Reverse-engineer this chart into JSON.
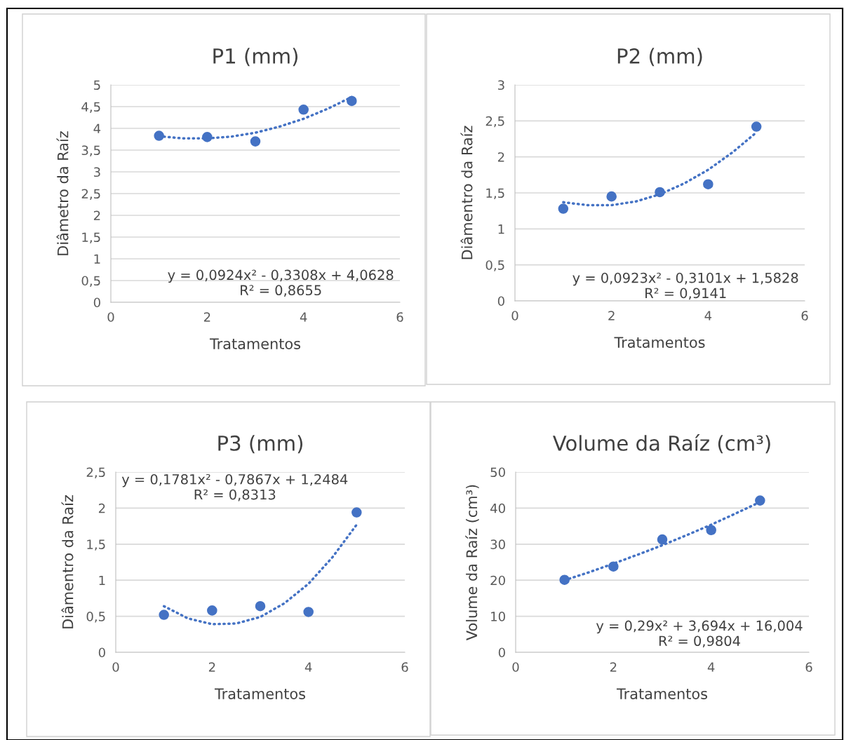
{
  "chart_data": [
    {
      "type": "scatter",
      "title": "P1 (mm)",
      "xlabel": "Tratamentos",
      "ylabel": "Diâmetro da Raíz",
      "x": [
        1,
        2,
        3,
        4,
        5
      ],
      "grid": "y",
      "legend": false,
      "marker": "circle",
      "series": [
        {
          "color": "#4472c4",
          "values": [
            3.83,
            3.8,
            3.7,
            4.43,
            4.63
          ]
        },
        {
          "type": "line",
          "line_style": "dotted",
          "marker": "none",
          "color": "#4472c4",
          "x": [
            1,
            1.5,
            2,
            2.5,
            3,
            3.5,
            4,
            4.5,
            5
          ],
          "values": [
            3.82,
            3.77,
            3.77,
            3.81,
            3.9,
            4.04,
            4.22,
            4.45,
            4.72
          ]
        }
      ],
      "xlim": [
        0,
        6
      ],
      "xticks": [
        0,
        2,
        4,
        6
      ],
      "ylim": [
        0,
        5
      ],
      "yticks": [
        0,
        {
          "value": 0.5,
          "label": "0,5"
        },
        1,
        {
          "value": 1.5,
          "label": "1,5"
        },
        2,
        {
          "value": 2.5,
          "label": "2,5"
        },
        3,
        {
          "value": 3.5,
          "label": "3,5"
        },
        4,
        {
          "value": 4.5,
          "label": "4,5"
        },
        5
      ],
      "annotations": [
        "y = 0,0924x² - 0,3308x + 4,0628\nR² = 0,8655"
      ]
    },
    {
      "type": "scatter",
      "title": "P2 (mm)",
      "xlabel": "Tratamentos",
      "ylabel": "Diâmentro da Raíz",
      "x": [
        1,
        2,
        3,
        4,
        5
      ],
      "grid": "y",
      "legend": false,
      "marker": "circle",
      "series": [
        {
          "color": "#4472c4",
          "values": [
            1.28,
            1.45,
            1.51,
            1.62,
            2.42
          ]
        },
        {
          "type": "line",
          "line_style": "dotted",
          "marker": "none",
          "color": "#4472c4",
          "x": [
            1,
            1.5,
            2,
            2.5,
            3,
            3.5,
            4,
            4.5,
            5
          ],
          "values": [
            1.37,
            1.33,
            1.33,
            1.38,
            1.48,
            1.63,
            1.82,
            2.06,
            2.34
          ]
        }
      ],
      "xlim": [
        0,
        6
      ],
      "xticks": [
        0,
        2,
        4,
        6
      ],
      "ylim": [
        0,
        3
      ],
      "yticks": [
        0,
        {
          "value": 0.5,
          "label": "0,5"
        },
        1,
        {
          "value": 1.5,
          "label": "1,5"
        },
        2,
        {
          "value": 2.5,
          "label": "2,5"
        },
        3
      ],
      "annotations": [
        "y = 0,0923x² - 0,3101x + 1,5828\nR² = 0,9141"
      ]
    },
    {
      "type": "scatter",
      "title": "P3 (mm)",
      "xlabel": "Tratamentos",
      "ylabel": "Diâmentro da Raíz",
      "x": [
        1,
        2,
        3,
        4,
        5
      ],
      "grid": "y",
      "legend": false,
      "marker": "circle",
      "series": [
        {
          "color": "#4472c4",
          "values": [
            0.52,
            0.58,
            0.64,
            0.56,
            1.94
          ]
        },
        {
          "type": "line",
          "line_style": "dotted",
          "marker": "none",
          "color": "#4472c4",
          "x": [
            1,
            1.5,
            2,
            2.5,
            3,
            3.5,
            4,
            4.5,
            5
          ],
          "values": [
            0.64,
            0.47,
            0.39,
            0.4,
            0.49,
            0.68,
            0.95,
            1.32,
            1.77
          ]
        }
      ],
      "xlim": [
        0,
        6
      ],
      "xticks": [
        0,
        2,
        4,
        6
      ],
      "ylim": [
        0,
        2.5
      ],
      "yticks": [
        0,
        {
          "value": 0.5,
          "label": "0,5"
        },
        1,
        {
          "value": 1.5,
          "label": "1,5"
        },
        2,
        {
          "value": 2.5,
          "label": "2,5"
        }
      ],
      "annotations": [
        "y = 0,1781x² - 0,7867x + 1,2484\nR² = 0,8313"
      ]
    },
    {
      "type": "scatter",
      "title": "Volume da Raíz (cm³)",
      "xlabel": "Tratamentos",
      "ylabel": "Volume da Raíz (cm³)",
      "x": [
        1,
        2,
        3,
        4,
        5
      ],
      "grid": "y",
      "legend": false,
      "marker": "circle",
      "series": [
        {
          "color": "#4472c4",
          "values": [
            20.1,
            23.8,
            31.3,
            33.9,
            42.1
          ]
        },
        {
          "type": "line",
          "line_style": "dotted",
          "marker": "none",
          "color": "#4472c4",
          "x": [
            1,
            1.5,
            2,
            2.5,
            3,
            3.5,
            4,
            4.5,
            5
          ],
          "values": [
            20.0,
            22.2,
            24.6,
            27.1,
            29.7,
            32.5,
            35.4,
            38.5,
            41.7
          ]
        }
      ],
      "xlim": [
        0,
        6
      ],
      "xticks": [
        0,
        2,
        4,
        6
      ],
      "ylim": [
        0,
        50
      ],
      "yticks": [
        0,
        10,
        20,
        30,
        40,
        50
      ],
      "annotations": [
        "y = 0,29x² + 3,694x + 16,004\nR² = 0,9804"
      ]
    }
  ]
}
